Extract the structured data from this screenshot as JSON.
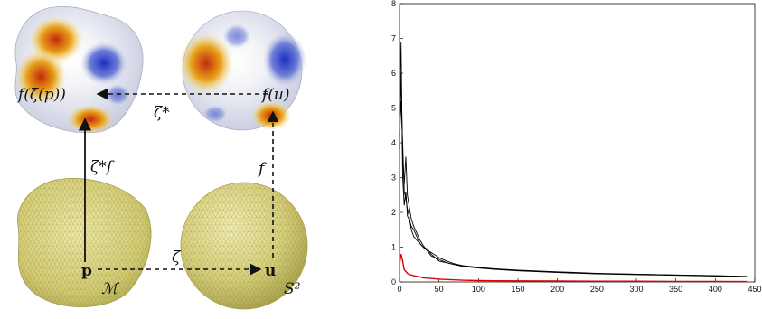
{
  "diagram": {
    "top_left_label": "f(ζ(p))",
    "top_right_label": "f(u)",
    "top_arrow_label": "ζ*",
    "left_arrow_label": "ζ*f",
    "right_arrow_label": "f",
    "bottom_arrow_label": "ζ",
    "bottom_left_label": "p",
    "bottom_right_label": "u",
    "manifold_label": "ℳ",
    "sphere_label": "S²"
  },
  "colors": {
    "black_series": "#000000",
    "red_series": "#e00000",
    "mesh_yellow": "#d8d27a",
    "heat_red": "#d03010",
    "heat_blue": "#2a3cc8"
  },
  "chart_data": {
    "type": "line",
    "xlim": [
      0,
      450
    ],
    "ylim": [
      0,
      8
    ],
    "xticks": [
      "0",
      "50",
      "100",
      "150",
      "200",
      "250",
      "300",
      "350",
      "400",
      "450"
    ],
    "yticks": [
      "0",
      "1",
      "2",
      "3",
      "4",
      "5",
      "6",
      "7",
      "8"
    ],
    "series": [
      {
        "x": [
          0,
          2,
          4,
          6,
          8,
          10,
          12,
          15,
          18,
          22,
          26,
          30,
          35,
          40,
          50,
          60,
          70,
          80,
          100,
          120,
          150,
          200,
          250,
          300,
          350,
          400,
          440
        ],
        "values": [
          4.8,
          6.9,
          3.0,
          2.2,
          2.6,
          1.9,
          1.8,
          1.6,
          1.5,
          1.3,
          1.1,
          1.0,
          0.95,
          0.8,
          0.6,
          0.55,
          0.5,
          0.45,
          0.4,
          0.38,
          0.33,
          0.28,
          0.24,
          0.22,
          0.2,
          0.18,
          0.15
        ]
      },
      {
        "x": [
          0,
          2,
          4,
          6,
          8,
          10,
          12,
          15,
          18,
          22,
          26,
          30,
          35,
          40,
          50,
          60,
          70,
          80,
          100,
          120,
          150,
          200,
          250,
          300,
          350,
          400,
          440
        ],
        "values": [
          4.2,
          5.2,
          4.0,
          2.6,
          2.4,
          2.1,
          1.9,
          1.5,
          1.3,
          1.2,
          1.1,
          1.0,
          0.9,
          0.75,
          0.65,
          0.55,
          0.5,
          0.45,
          0.4,
          0.36,
          0.32,
          0.27,
          0.23,
          0.21,
          0.19,
          0.17,
          0.14
        ]
      },
      {
        "x": [
          0,
          2,
          4,
          6,
          8,
          10,
          12,
          15,
          18,
          22,
          26,
          30,
          35,
          40,
          50,
          60,
          70,
          80,
          100,
          120,
          150,
          200,
          250,
          300,
          350,
          400,
          440
        ],
        "values": [
          3.8,
          6.0,
          3.6,
          2.8,
          3.6,
          2.5,
          2.2,
          1.8,
          1.6,
          1.4,
          1.2,
          1.05,
          0.9,
          0.85,
          0.7,
          0.6,
          0.52,
          0.47,
          0.42,
          0.38,
          0.34,
          0.29,
          0.25,
          0.22,
          0.2,
          0.18,
          0.16
        ]
      },
      {
        "x": [
          0,
          2,
          4,
          6,
          8,
          10,
          12,
          15,
          18,
          22,
          26,
          30,
          35,
          40,
          50,
          60,
          70,
          80,
          100,
          120,
          150,
          200,
          250,
          300,
          350,
          400,
          440
        ],
        "values": [
          0.5,
          0.8,
          0.6,
          0.35,
          0.3,
          0.25,
          0.22,
          0.2,
          0.18,
          0.16,
          0.14,
          0.12,
          0.11,
          0.1,
          0.08,
          0.07,
          0.06,
          0.05,
          0.04,
          0.035,
          0.03,
          0.025,
          0.02,
          0.02,
          0.015,
          0.015,
          0.01
        ]
      }
    ]
  }
}
